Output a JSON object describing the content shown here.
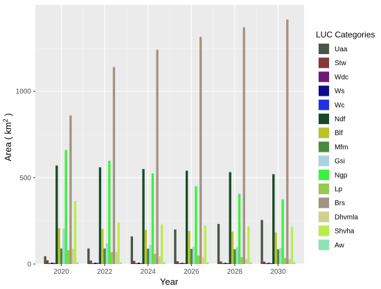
{
  "chart_data": {
    "type": "bar",
    "xlabel": "Year",
    "ylabel_prefix": "Area ( km",
    "ylabel_sup": "2",
    "ylabel_suffix": " )",
    "ylim": [
      0,
      1500
    ],
    "y_ticks": [
      0,
      500,
      1000
    ],
    "x_ticks": [
      2020,
      2022,
      2024,
      2026,
      2028,
      2030
    ],
    "x_range": [
      2018.8,
      2031.2
    ],
    "bar_group_width": 1.6,
    "grid": true,
    "legend_placement": "right",
    "legend_title": "LUC Categories",
    "series": [
      {
        "name": "Uaa",
        "color": "#4a5448",
        "values": [
          45,
          90,
          160,
          200,
          232,
          255
        ]
      },
      {
        "name": "Stw",
        "color": "#87363a",
        "values": [
          22,
          20,
          18,
          16,
          15,
          14
        ]
      },
      {
        "name": "Wdc",
        "color": "#6e1a78",
        "values": [
          5,
          5,
          5,
          5,
          5,
          5
        ]
      },
      {
        "name": "Ws",
        "color": "#0c0c8c",
        "values": [
          8,
          8,
          8,
          7,
          7,
          7
        ]
      },
      {
        "name": "Wc",
        "color": "#2030e8",
        "values": [
          6,
          6,
          5,
          5,
          5,
          5
        ]
      },
      {
        "name": "Ndf",
        "color": "#184a27",
        "values": [
          570,
          560,
          550,
          540,
          532,
          520
        ]
      },
      {
        "name": "Blf",
        "color": "#b9c42a",
        "values": [
          208,
          203,
          197,
          192,
          188,
          183
        ]
      },
      {
        "name": "Mfm",
        "color": "#478c3d",
        "values": [
          90,
          90,
          89,
          88,
          86,
          85
        ]
      },
      {
        "name": "Gsi",
        "color": "#a9d3dd",
        "values": [
          205,
          120,
          110,
          100,
          96,
          92
        ]
      },
      {
        "name": "Ngp",
        "color": "#3bf23f",
        "values": [
          660,
          598,
          525,
          450,
          406,
          375
        ]
      },
      {
        "name": "Lp",
        "color": "#96c94f",
        "values": [
          80,
          70,
          60,
          50,
          40,
          35
        ]
      },
      {
        "name": "Brs",
        "color": "#a39383",
        "values": [
          860,
          1140,
          1240,
          1315,
          1370,
          1415
        ]
      },
      {
        "name": "Dhvmla",
        "color": "#cfd28f",
        "values": [
          90,
          70,
          45,
          38,
          30,
          28
        ]
      },
      {
        "name": "Shvha",
        "color": "#b9ec4c",
        "values": [
          365,
          240,
          230,
          222,
          218,
          215
        ]
      },
      {
        "name": "Aw",
        "color": "#8de3b7",
        "values": [
          10,
          10,
          10,
          10,
          10,
          10
        ]
      }
    ]
  }
}
